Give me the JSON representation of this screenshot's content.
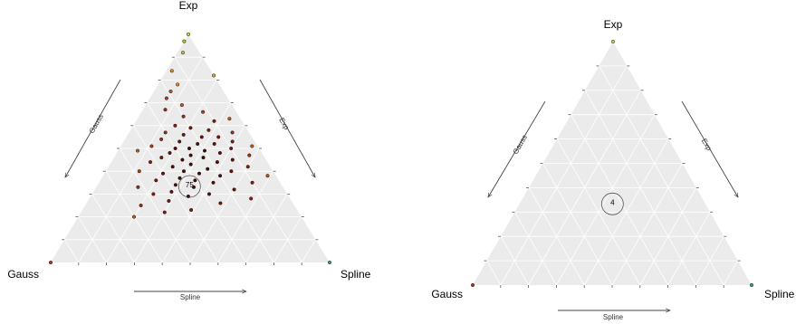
{
  "chart_data": [
    {
      "type": "scatter",
      "subtype": "ternary",
      "vertices": {
        "top": "Exp",
        "left": "Gauss",
        "right": "Spline"
      },
      "axis_arrows": {
        "left": "Gauss",
        "right": "Exp",
        "bottom": "Spline"
      },
      "center_label": "75",
      "background_color": "#ebebeb",
      "grid_color": "#ffffff",
      "points": [
        {
          "exp": 1.0,
          "gauss": 0.0,
          "spline": 0.0,
          "color": "#c9d64a"
        },
        {
          "exp": 0.97,
          "gauss": 0.03,
          "spline": 0.0,
          "color": "#9fc43a"
        },
        {
          "exp": 0.92,
          "gauss": 0.06,
          "spline": 0.02,
          "color": "#d9b43a"
        },
        {
          "exp": 0.84,
          "gauss": 0.14,
          "spline": 0.02,
          "color": "#d98a2a"
        },
        {
          "exp": 0.82,
          "gauss": 0.0,
          "spline": 0.18,
          "color": "#e0a030"
        },
        {
          "exp": 0.78,
          "gauss": 0.15,
          "spline": 0.07,
          "color": "#d98a2a"
        },
        {
          "exp": 0.75,
          "gauss": 0.19,
          "spline": 0.06,
          "color": "#c0561c"
        },
        {
          "exp": 0.72,
          "gauss": 0.22,
          "spline": 0.06,
          "color": "#b03a16"
        },
        {
          "exp": 0.69,
          "gauss": 0.18,
          "spline": 0.13,
          "color": "#c0561c"
        },
        {
          "exp": 0.67,
          "gauss": 0.25,
          "spline": 0.08,
          "color": "#a02a12"
        },
        {
          "exp": 0.66,
          "gauss": 0.12,
          "spline": 0.22,
          "color": "#b03a16"
        },
        {
          "exp": 0.64,
          "gauss": 0.2,
          "spline": 0.16,
          "color": "#a02a12"
        },
        {
          "exp": 0.63,
          "gauss": 0.04,
          "spline": 0.33,
          "color": "#c0561c"
        },
        {
          "exp": 0.62,
          "gauss": 0.1,
          "spline": 0.28,
          "color": "#8a1a0e"
        },
        {
          "exp": 0.6,
          "gauss": 0.25,
          "spline": 0.15,
          "color": "#8a1a0e"
        },
        {
          "exp": 0.59,
          "gauss": 0.2,
          "spline": 0.21,
          "color": "#7a140c"
        },
        {
          "exp": 0.58,
          "gauss": 0.14,
          "spline": 0.28,
          "color": "#8a1a0e"
        },
        {
          "exp": 0.57,
          "gauss": 0.3,
          "spline": 0.13,
          "color": "#a02a12"
        },
        {
          "exp": 0.57,
          "gauss": 0.06,
          "spline": 0.37,
          "color": "#a02a12"
        },
        {
          "exp": 0.56,
          "gauss": 0.24,
          "spline": 0.2,
          "color": "#7a140c"
        },
        {
          "exp": 0.55,
          "gauss": 0.18,
          "spline": 0.27,
          "color": "#6a0e08"
        },
        {
          "exp": 0.55,
          "gauss": 0.12,
          "spline": 0.33,
          "color": "#7a140c"
        },
        {
          "exp": 0.54,
          "gauss": 0.33,
          "spline": 0.13,
          "color": "#a02a12"
        },
        {
          "exp": 0.53,
          "gauss": 0.27,
          "spline": 0.2,
          "color": "#6a0e08"
        },
        {
          "exp": 0.53,
          "gauss": 0.08,
          "spline": 0.39,
          "color": "#8a1a0e"
        },
        {
          "exp": 0.52,
          "gauss": 0.21,
          "spline": 0.27,
          "color": "#5a0a06"
        },
        {
          "exp": 0.52,
          "gauss": 0.15,
          "spline": 0.33,
          "color": "#6a0e08"
        },
        {
          "exp": 0.51,
          "gauss": 0.38,
          "spline": 0.11,
          "color": "#b03a16"
        },
        {
          "exp": 0.51,
          "gauss": 0.02,
          "spline": 0.47,
          "color": "#c0561c"
        },
        {
          "exp": 0.5,
          "gauss": 0.3,
          "spline": 0.2,
          "color": "#5a0a06"
        },
        {
          "exp": 0.5,
          "gauss": 0.25,
          "spline": 0.25,
          "color": "#4a0804"
        },
        {
          "exp": 0.5,
          "gauss": 0.1,
          "spline": 0.4,
          "color": "#7a140c"
        },
        {
          "exp": 0.49,
          "gauss": 0.44,
          "spline": 0.07,
          "color": "#c0561c"
        },
        {
          "exp": 0.49,
          "gauss": 0.2,
          "spline": 0.31,
          "color": "#4a0804"
        },
        {
          "exp": 0.48,
          "gauss": 0.33,
          "spline": 0.19,
          "color": "#6a0e08"
        },
        {
          "exp": 0.48,
          "gauss": 0.15,
          "spline": 0.37,
          "color": "#5a0a06"
        },
        {
          "exp": 0.47,
          "gauss": 0.26,
          "spline": 0.27,
          "color": "#4a0804"
        },
        {
          "exp": 0.47,
          "gauss": 0.05,
          "spline": 0.48,
          "color": "#a02a12"
        },
        {
          "exp": 0.46,
          "gauss": 0.37,
          "spline": 0.17,
          "color": "#7a140c"
        },
        {
          "exp": 0.46,
          "gauss": 0.22,
          "spline": 0.32,
          "color": "#4a0804"
        },
        {
          "exp": 0.45,
          "gauss": 0.3,
          "spline": 0.25,
          "color": "#4a0804"
        },
        {
          "exp": 0.45,
          "gauss": 0.12,
          "spline": 0.43,
          "color": "#6a0e08"
        },
        {
          "exp": 0.44,
          "gauss": 0.42,
          "spline": 0.14,
          "color": "#8a1a0e"
        },
        {
          "exp": 0.44,
          "gauss": 0.18,
          "spline": 0.38,
          "color": "#5a0a06"
        },
        {
          "exp": 0.43,
          "gauss": 0.28,
          "spline": 0.29,
          "color": "#4a0804"
        },
        {
          "exp": 0.42,
          "gauss": 0.35,
          "spline": 0.23,
          "color": "#5a0a06"
        },
        {
          "exp": 0.42,
          "gauss": 0.08,
          "spline": 0.5,
          "color": "#8a1a0e"
        },
        {
          "exp": 0.41,
          "gauss": 0.23,
          "spline": 0.36,
          "color": "#4a0804"
        },
        {
          "exp": 0.4,
          "gauss": 0.48,
          "spline": 0.12,
          "color": "#b03a16"
        },
        {
          "exp": 0.4,
          "gauss": 0.32,
          "spline": 0.28,
          "color": "#4a0804"
        },
        {
          "exp": 0.4,
          "gauss": 0.15,
          "spline": 0.45,
          "color": "#6a0e08"
        },
        {
          "exp": 0.39,
          "gauss": 0.4,
          "spline": 0.21,
          "color": "#6a0e08"
        },
        {
          "exp": 0.39,
          "gauss": 0.27,
          "spline": 0.34,
          "color": "#4a0804"
        },
        {
          "exp": 0.38,
          "gauss": 0.03,
          "spline": 0.59,
          "color": "#c0561c"
        },
        {
          "exp": 0.38,
          "gauss": 0.2,
          "spline": 0.42,
          "color": "#5a0a06"
        },
        {
          "exp": 0.37,
          "gauss": 0.35,
          "spline": 0.28,
          "color": "#4a0804"
        },
        {
          "exp": 0.36,
          "gauss": 0.44,
          "spline": 0.2,
          "color": "#7a140c"
        },
        {
          "exp": 0.36,
          "gauss": 0.3,
          "spline": 0.34,
          "color": "#4a0804"
        },
        {
          "exp": 0.35,
          "gauss": 0.24,
          "spline": 0.41,
          "color": "#5a0a06"
        },
        {
          "exp": 0.35,
          "gauss": 0.1,
          "spline": 0.55,
          "color": "#8a1a0e"
        },
        {
          "exp": 0.34,
          "gauss": 0.38,
          "spline": 0.28,
          "color": "#5a0a06"
        },
        {
          "exp": 0.33,
          "gauss": 0.32,
          "spline": 0.35,
          "color": "#4a0804"
        },
        {
          "exp": 0.33,
          "gauss": 0.52,
          "spline": 0.15,
          "color": "#a02a12"
        },
        {
          "exp": 0.32,
          "gauss": 0.18,
          "spline": 0.5,
          "color": "#6a0e08"
        },
        {
          "exp": 0.31,
          "gauss": 0.41,
          "spline": 0.28,
          "color": "#6a0e08"
        },
        {
          "exp": 0.3,
          "gauss": 0.28,
          "spline": 0.42,
          "color": "#5a0a06"
        },
        {
          "exp": 0.3,
          "gauss": 0.48,
          "spline": 0.22,
          "color": "#8a1a0e"
        },
        {
          "exp": 0.29,
          "gauss": 0.36,
          "spline": 0.35,
          "color": "#5a0a06"
        },
        {
          "exp": 0.28,
          "gauss": 0.14,
          "spline": 0.58,
          "color": "#8a1a0e"
        },
        {
          "exp": 0.27,
          "gauss": 0.44,
          "spline": 0.29,
          "color": "#7a140c"
        },
        {
          "exp": 0.26,
          "gauss": 0.26,
          "spline": 0.48,
          "color": "#7a140c"
        },
        {
          "exp": 0.25,
          "gauss": 0.55,
          "spline": 0.2,
          "color": "#a02a12"
        },
        {
          "exp": 0.23,
          "gauss": 0.38,
          "spline": 0.39,
          "color": "#7a140c"
        },
        {
          "exp": 0.22,
          "gauss": 0.48,
          "spline": 0.3,
          "color": "#8a1a0e"
        },
        {
          "exp": 0.2,
          "gauss": 0.6,
          "spline": 0.2,
          "color": "#c0561c"
        },
        {
          "exp": 0.0,
          "gauss": 1.0,
          "spline": 0.0,
          "color": "#b03a16"
        },
        {
          "exp": 0.0,
          "gauss": 0.0,
          "spline": 1.0,
          "color": "#3aa08a"
        }
      ]
    },
    {
      "type": "scatter",
      "subtype": "ternary",
      "vertices": {
        "top": "Exp",
        "left": "Gauss",
        "right": "Spline"
      },
      "axis_arrows": {
        "left": "Gauss",
        "right": "Exp",
        "bottom": "Spline"
      },
      "center_label": "4",
      "background_color": "#ebebeb",
      "grid_color": "#ffffff",
      "points": [
        {
          "exp": 1.0,
          "gauss": 0.0,
          "spline": 0.0,
          "color": "#c9d64a"
        },
        {
          "exp": 0.0,
          "gauss": 1.0,
          "spline": 0.0,
          "color": "#b03a16"
        },
        {
          "exp": 0.0,
          "gauss": 0.0,
          "spline": 1.0,
          "color": "#3aa08a"
        }
      ]
    }
  ]
}
